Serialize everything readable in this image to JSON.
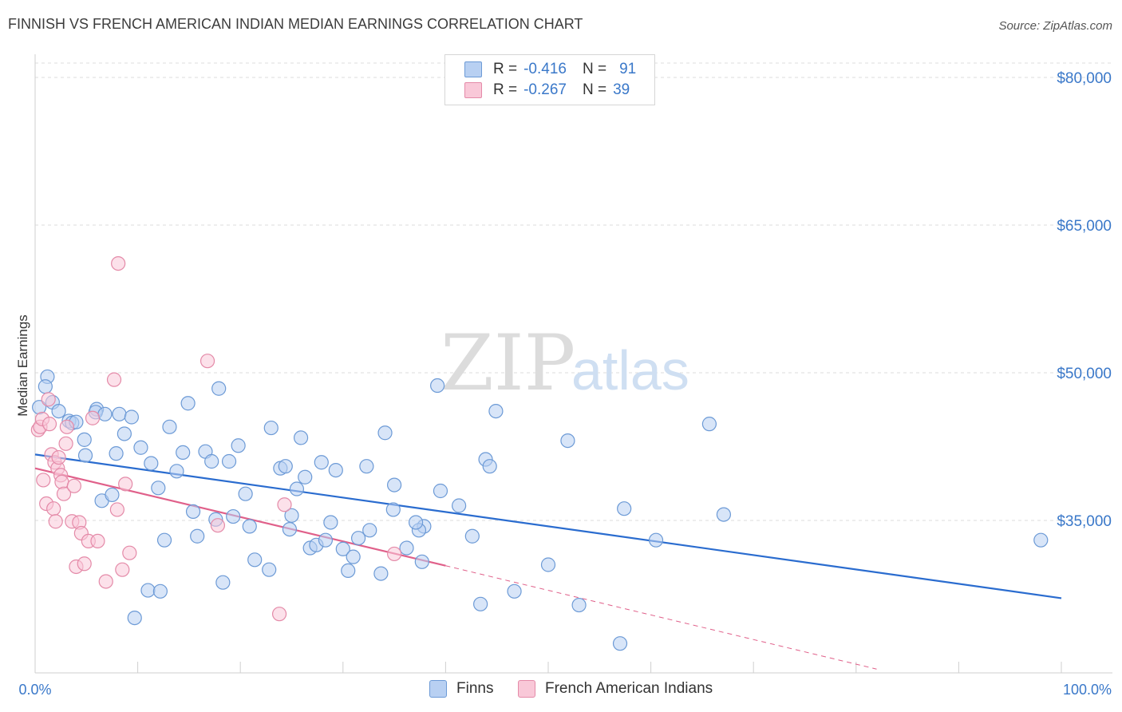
{
  "header": {
    "title": "FINNISH VS FRENCH AMERICAN INDIAN MEDIAN EARNINGS CORRELATION CHART",
    "source": "Source: ZipAtlas.com"
  },
  "watermark": {
    "zip": "ZIP",
    "atlas": "atlas"
  },
  "legend_top": {
    "rows": [
      {
        "r_label": "R =",
        "r_value": "-0.416",
        "n_label": "N =",
        "n_value": "91"
      },
      {
        "r_label": "R =",
        "r_value": "-0.267",
        "n_label": "N =",
        "n_value": "39"
      }
    ]
  },
  "legend_bottom": {
    "items": [
      "Finns",
      "French American Indians"
    ]
  },
  "colors": {
    "finns_fill": "#b8d0f2",
    "finns_stroke": "#6c9ad6",
    "finns_line": "#2a6ccf",
    "fai_fill": "#f9c8d8",
    "fai_stroke": "#e48aa8",
    "fai_line": "#e0608a",
    "tick_text": "#3a78c9"
  },
  "chart_data": {
    "type": "scatter",
    "title": "FINNISH VS FRENCH AMERICAN INDIAN MEDIAN EARNINGS CORRELATION CHART",
    "xlabel": "",
    "ylabel": "Median Earnings",
    "xlim": [
      0,
      100
    ],
    "ylim": [
      20000,
      84000
    ],
    "x_tick_labels": [
      "0.0%",
      "100.0%"
    ],
    "y_ticks": [
      35000,
      50000,
      65000,
      80000
    ],
    "y_tick_labels": [
      "$35,000",
      "$50,000",
      "$65,000",
      "$80,000"
    ],
    "grid": true,
    "series": [
      {
        "name": "Finns",
        "R": -0.416,
        "N": 91,
        "trend": {
          "x": [
            0,
            100
          ],
          "y": [
            41700,
            27100
          ]
        },
        "points": [
          [
            0.4,
            46500
          ],
          [
            1.2,
            49600
          ],
          [
            1.0,
            48600
          ],
          [
            1.7,
            47000
          ],
          [
            2.3,
            46100
          ],
          [
            3.3,
            45100
          ],
          [
            3.6,
            44900
          ],
          [
            4.0,
            45000
          ],
          [
            4.8,
            43200
          ],
          [
            4.9,
            41600
          ],
          [
            6.0,
            46300
          ],
          [
            5.9,
            46000
          ],
          [
            6.8,
            45800
          ],
          [
            8.2,
            45800
          ],
          [
            9.4,
            45500
          ],
          [
            6.5,
            37000
          ],
          [
            7.5,
            37600
          ],
          [
            7.9,
            41800
          ],
          [
            8.7,
            43800
          ],
          [
            10.3,
            42400
          ],
          [
            11.3,
            40800
          ],
          [
            12.0,
            38300
          ],
          [
            12.6,
            33000
          ],
          [
            13.1,
            44500
          ],
          [
            13.8,
            40000
          ],
          [
            14.4,
            41900
          ],
          [
            14.9,
            46900
          ],
          [
            15.4,
            35900
          ],
          [
            15.8,
            33400
          ],
          [
            16.6,
            42000
          ],
          [
            17.2,
            41000
          ],
          [
            17.6,
            35100
          ],
          [
            17.9,
            48400
          ],
          [
            18.3,
            28700
          ],
          [
            18.9,
            41000
          ],
          [
            19.3,
            35400
          ],
          [
            19.8,
            42600
          ],
          [
            20.5,
            37700
          ],
          [
            20.9,
            34400
          ],
          [
            21.4,
            31000
          ],
          [
            22.8,
            30000
          ],
          [
            23.0,
            44400
          ],
          [
            23.9,
            40300
          ],
          [
            24.4,
            40500
          ],
          [
            24.8,
            34100
          ],
          [
            25.0,
            35500
          ],
          [
            25.5,
            38200
          ],
          [
            25.9,
            43400
          ],
          [
            26.3,
            39400
          ],
          [
            26.8,
            32200
          ],
          [
            27.4,
            32500
          ],
          [
            27.9,
            40900
          ],
          [
            28.3,
            33000
          ],
          [
            28.8,
            34800
          ],
          [
            29.3,
            40100
          ],
          [
            30.0,
            32100
          ],
          [
            30.5,
            29900
          ],
          [
            31.0,
            31300
          ],
          [
            31.5,
            33200
          ],
          [
            32.3,
            40500
          ],
          [
            32.6,
            34000
          ],
          [
            33.7,
            29600
          ],
          [
            34.1,
            43900
          ],
          [
            35.0,
            38600
          ],
          [
            34.9,
            36100
          ],
          [
            37.7,
            30800
          ],
          [
            37.9,
            34400
          ],
          [
            37.4,
            34000
          ],
          [
            37.1,
            34800
          ],
          [
            39.2,
            48700
          ],
          [
            39.5,
            38000
          ],
          [
            41.3,
            36500
          ],
          [
            42.6,
            33400
          ],
          [
            43.4,
            26500
          ],
          [
            43.9,
            41200
          ],
          [
            44.3,
            40500
          ],
          [
            44.9,
            46100
          ],
          [
            46.7,
            27800
          ],
          [
            50.0,
            30500
          ],
          [
            51.9,
            43100
          ],
          [
            53.0,
            26400
          ],
          [
            57.0,
            22500
          ],
          [
            57.4,
            36200
          ],
          [
            60.5,
            33000
          ],
          [
            65.7,
            44800
          ],
          [
            67.1,
            35600
          ],
          [
            98.0,
            33000
          ],
          [
            11.0,
            27900
          ],
          [
            12.2,
            27800
          ],
          [
            9.7,
            25100
          ],
          [
            36.2,
            32200
          ]
        ]
      },
      {
        "name": "French American Indians",
        "R": -0.267,
        "N": 39,
        "trend": {
          "x": [
            0,
            40
          ],
          "y": [
            40300,
            30400
          ]
        },
        "trend_extension": {
          "x": [
            40,
            82
          ],
          "y": [
            30400,
            19900
          ]
        },
        "points": [
          [
            0.3,
            44200
          ],
          [
            0.5,
            44500
          ],
          [
            0.7,
            45300
          ],
          [
            0.8,
            39100
          ],
          [
            1.1,
            36700
          ],
          [
            1.3,
            47300
          ],
          [
            1.4,
            44800
          ],
          [
            1.6,
            41700
          ],
          [
            1.8,
            36200
          ],
          [
            1.9,
            40900
          ],
          [
            2.0,
            34900
          ],
          [
            2.2,
            40300
          ],
          [
            2.3,
            41400
          ],
          [
            2.5,
            39600
          ],
          [
            2.6,
            38900
          ],
          [
            2.8,
            37700
          ],
          [
            3.0,
            42800
          ],
          [
            3.1,
            44500
          ],
          [
            3.6,
            34900
          ],
          [
            3.8,
            38500
          ],
          [
            4.0,
            30300
          ],
          [
            4.3,
            34800
          ],
          [
            4.5,
            33700
          ],
          [
            4.8,
            30600
          ],
          [
            5.2,
            32900
          ],
          [
            5.6,
            45400
          ],
          [
            6.1,
            32900
          ],
          [
            6.9,
            28800
          ],
          [
            7.7,
            49300
          ],
          [
            8.0,
            36100
          ],
          [
            8.1,
            61100
          ],
          [
            8.5,
            30000
          ],
          [
            8.8,
            38700
          ],
          [
            9.2,
            31700
          ],
          [
            16.8,
            51200
          ],
          [
            17.8,
            34500
          ],
          [
            23.8,
            25500
          ],
          [
            24.3,
            36600
          ],
          [
            35.0,
            31600
          ]
        ]
      }
    ]
  }
}
